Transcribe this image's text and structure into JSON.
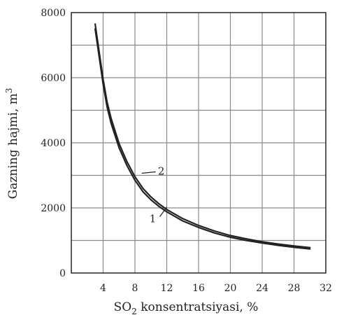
{
  "chart_data": {
    "type": "line",
    "xlabel_main": "SO",
    "xlabel_sub": "2",
    "xlabel_rest": " konsentratsiyasi, %",
    "ylabel_main": "Gazning hajmi, m",
    "ylabel_sup": "3",
    "xlim": [
      0,
      32
    ],
    "ylim": [
      0,
      8000
    ],
    "x_ticks": [
      4,
      8,
      12,
      16,
      20,
      24,
      28,
      32
    ],
    "x_tick_labels": [
      "4",
      "8",
      "12",
      "16",
      "20",
      "24",
      "28",
      "32"
    ],
    "y_ticks": [
      0,
      2000,
      4000,
      6000,
      8000
    ],
    "y_tick_labels": [
      "0",
      "2000",
      "4000",
      "6000",
      "8000"
    ],
    "grid": true,
    "series": [
      {
        "name": "1",
        "x": [
          3,
          3.5,
          4,
          4.5,
          5,
          6,
          7,
          8,
          9,
          10,
          11,
          12,
          14,
          16,
          18,
          20,
          22,
          24,
          26,
          28,
          30
        ],
        "y": [
          7500,
          6650,
          5800,
          5100,
          4600,
          3850,
          3300,
          2850,
          2500,
          2250,
          2050,
          1880,
          1600,
          1400,
          1230,
          1100,
          1000,
          920,
          850,
          790,
          740
        ]
      },
      {
        "name": "2",
        "x": [
          3,
          3.5,
          4,
          4.5,
          5,
          6,
          7,
          8,
          9,
          10,
          11,
          12,
          14,
          16,
          18,
          20,
          22,
          24,
          26,
          28,
          30
        ],
        "y": [
          7650,
          6800,
          5950,
          5250,
          4750,
          3980,
          3420,
          2960,
          2600,
          2340,
          2130,
          1950,
          1670,
          1460,
          1290,
          1150,
          1050,
          960,
          890,
          830,
          780
        ]
      }
    ],
    "annotations": [
      {
        "text": "1",
        "target_x": 12,
        "target_y": 2030
      },
      {
        "text": "2",
        "target_x": 8.5,
        "target_y": 2850
      }
    ]
  }
}
